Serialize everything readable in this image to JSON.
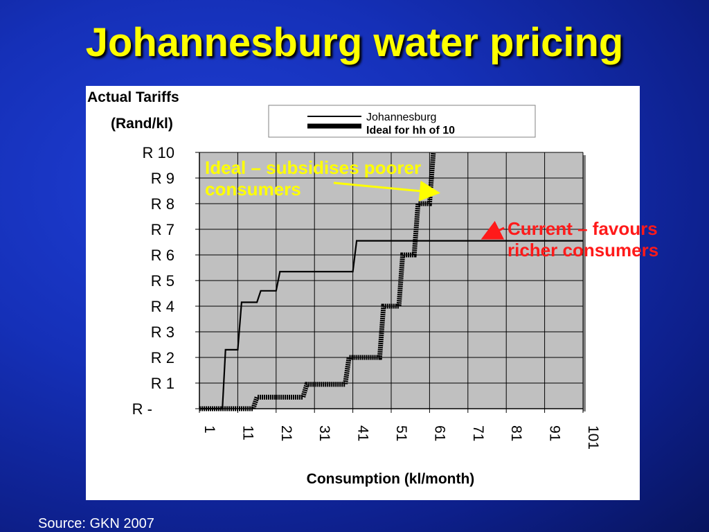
{
  "slide": {
    "title": "Johannesburg water pricing",
    "source": "Source: GKN 2007"
  },
  "annotations": {
    "ideal_line1": "Ideal – subsidises poorer",
    "ideal_line2": "consumers",
    "current_line1": "Current – favours",
    "current_line2": "richer consumers",
    "ideal_color": "#ffff00",
    "current_color": "#ff1a1a"
  },
  "chart_data": {
    "type": "line",
    "ylabel_line1": "Actual Tariffs",
    "ylabel_line2": "(Rand/kl)",
    "xlabel": "Consumption (kl/month)",
    "x_ticks": [
      "1",
      "11",
      "21",
      "31",
      "41",
      "51",
      "61",
      "71",
      "81",
      "91",
      "101"
    ],
    "y_ticks": [
      "R -",
      "R 1",
      "R 2",
      "R 3",
      "R 4",
      "R 5",
      "R 6",
      "R 7",
      "R 8",
      "R 9",
      "R 10"
    ],
    "xlim": [
      1,
      101
    ],
    "ylim": [
      0,
      10
    ],
    "grid": true,
    "plot_background": "#c0c0c0",
    "legend_position": "top",
    "series": [
      {
        "name": "Johannesburg",
        "style": "thin",
        "color": "#000000",
        "points": [
          [
            1,
            0
          ],
          [
            7,
            0
          ],
          [
            7.8,
            2.3
          ],
          [
            10,
            2.3
          ],
          [
            11,
            2.3
          ],
          [
            12,
            4.15
          ],
          [
            16,
            4.15
          ],
          [
            17,
            4.6
          ],
          [
            21,
            4.6
          ],
          [
            22,
            5.35
          ],
          [
            41,
            5.35
          ],
          [
            42,
            6.55
          ],
          [
            101,
            6.55
          ]
        ]
      },
      {
        "name": "Ideal for hh of 10",
        "style": "thick",
        "color": "#000000",
        "points": [
          [
            1,
            0
          ],
          [
            15,
            0
          ],
          [
            16,
            0.45
          ],
          [
            28,
            0.45
          ],
          [
            29,
            0.95
          ],
          [
            39,
            0.95
          ],
          [
            40,
            2.0
          ],
          [
            48,
            2.0
          ],
          [
            49,
            4.0
          ],
          [
            53,
            4.0
          ],
          [
            54,
            6.0
          ],
          [
            57,
            6.0
          ],
          [
            58,
            8.0
          ],
          [
            61,
            8.0
          ],
          [
            62,
            10.0
          ]
        ]
      }
    ]
  }
}
